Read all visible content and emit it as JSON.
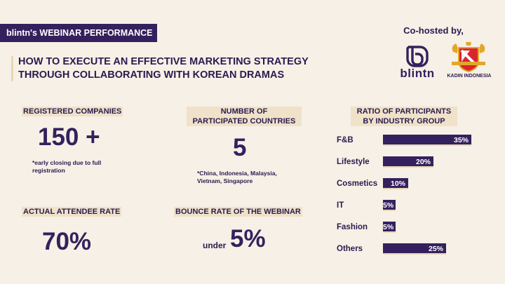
{
  "header": {
    "brand_tag": "blintn's WEBINAR PERFORMANCE",
    "title_line1": "HOW TO EXECUTE AN EFFECTIVE MARKETING STRATEGY",
    "title_line2": "THROUGH COLLABORATING WITH KOREAN DRAMAS"
  },
  "cohost": {
    "label": "Co-hosted by,",
    "logo1_text": "blintn",
    "logo2_text": "KADIN INDONESIA"
  },
  "stats": {
    "registered": {
      "label": "REGISTERED COMPANIES",
      "value": "150 +",
      "note_line1": "*early closing due to full",
      "note_line2": "registration"
    },
    "countries": {
      "label_line1": "NUMBER OF",
      "label_line2": "PARTICIPATED COUNTRIES",
      "value": "5",
      "note_line1": "*China, Indonesia, Malaysia,",
      "note_line2": "Vietnam, Singapore"
    },
    "attendee": {
      "label": "ACTUAL ATTENDEE RATE",
      "value": "70%"
    },
    "bounce": {
      "label": "BOUNCE RATE OF THE WEBINAR",
      "prefix": "under",
      "value": "5%"
    }
  },
  "chart_data": {
    "type": "bar",
    "orientation": "horizontal",
    "title_line1": "RATIO OF PARTICIPANTS",
    "title_line2": "BY INDUSTRY GROUP",
    "categories": [
      "F&B",
      "Lifestyle",
      "Cosmetics",
      "IT",
      "Fashion",
      "Others"
    ],
    "values": [
      35,
      20,
      10,
      5,
      5,
      25
    ],
    "value_labels": [
      "35%",
      "20%",
      "10%",
      "5%",
      "5%",
      "25%"
    ],
    "unit": "%",
    "xlim": [
      0,
      35
    ],
    "bar_color": "#35205e"
  },
  "colors": {
    "background": "#f6f0e6",
    "accent": "#35205e",
    "highlight": "#efe2c9"
  }
}
